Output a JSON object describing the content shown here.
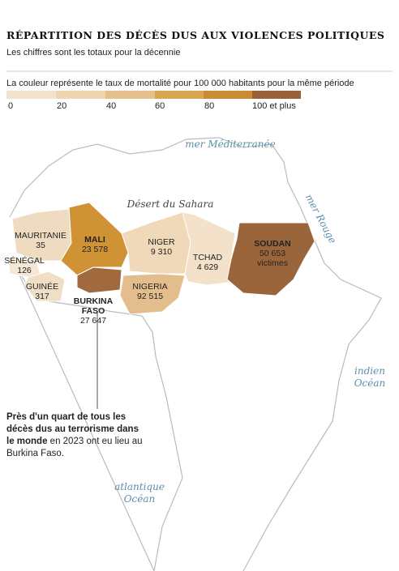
{
  "title": "RÉPARTITION DES DÉCÈS DUS AUX VIOLENCES POLITIQUES",
  "subtitle": "Les chiffres sont les totaux pour la décennie",
  "legend": {
    "title": "La couleur représente le taux de mortalité pour 100 000 habitants pour la même période",
    "labels": [
      "0",
      "20",
      "40",
      "60",
      "80",
      "100 et plus"
    ]
  },
  "regions": [
    {
      "name": "MAURITANIE",
      "value": "35"
    },
    {
      "name": "MALI",
      "value": "23 578"
    },
    {
      "name": "NIGER",
      "value": "9 310"
    },
    {
      "name": "TCHAD",
      "value": "4 629"
    },
    {
      "name": "SOUDAN",
      "value": "50 653",
      "unit": "victimes"
    },
    {
      "name": "NIGERIA",
      "value": "92 515"
    },
    {
      "name": [
        "BURKINA",
        "FASO"
      ],
      "value": "27 647"
    },
    {
      "name": "SÉNÉGAL",
      "value": "126"
    },
    {
      "name": "GUINÉE",
      "value": "317"
    }
  ],
  "places": {
    "desert": "Désert du Sahara",
    "mediterranean": "mer Méditerranée",
    "red_sea": "mer Rouge",
    "indian": [
      "indien",
      "Océan"
    ],
    "atlantic": [
      "atlantique",
      "Océan"
    ]
  },
  "annotation": {
    "bold": "Près d'un quart de tous les décès dus au terrorisme dans le monde",
    "text": " en 2023 ont eu lieu au Burkina Faso."
  }
}
